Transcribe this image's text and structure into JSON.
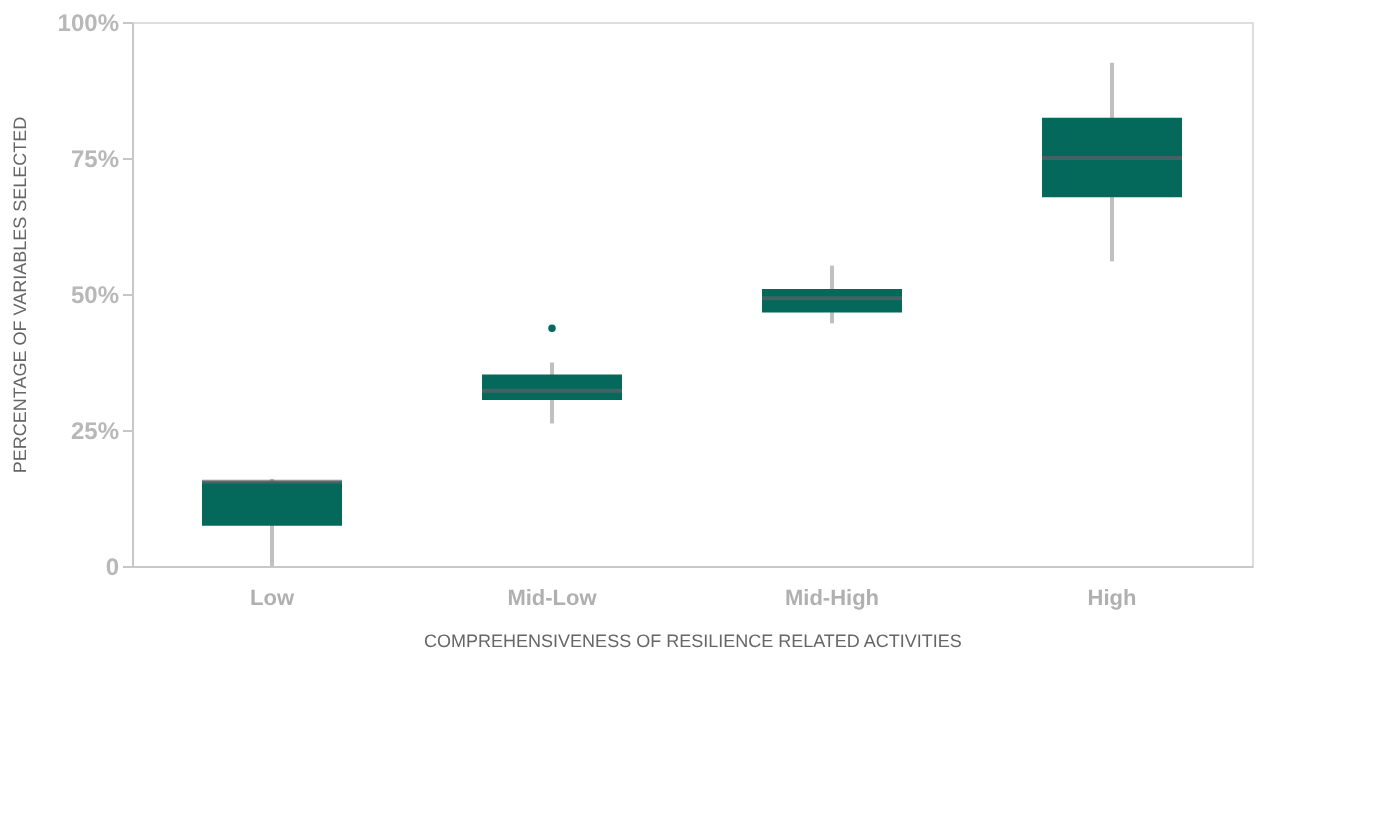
{
  "chart_data": {
    "type": "box",
    "xlabel": "COMPREHENSIVENESS OF RESILIENCE RELATED ACTIVITIES",
    "ylabel": "PERCENTAGE OF VARIABLES SELECTED",
    "categories": [
      "Low",
      "Mid-Low",
      "Mid-High",
      "High"
    ],
    "color": "#04695a",
    "boxes": [
      {
        "low": 0,
        "q1": 7.4,
        "median": 15.5,
        "q3": 15.6,
        "high": 16
      },
      {
        "low": 26.2,
        "q1": 30.5,
        "median": 32.2,
        "q3": 35.2,
        "high": 37.4,
        "outliers": [
          43.7
        ]
      },
      {
        "low": 44.6,
        "q1": 46.6,
        "median": 49.2,
        "q3": 50.9,
        "high": 55.2
      },
      {
        "low": 56,
        "q1": 67.8,
        "median": 75,
        "q3": 82.4,
        "high": 92.5
      }
    ],
    "ylim": [
      0,
      100
    ],
    "yticks": [
      {
        "value": 0,
        "label": "0"
      },
      {
        "value": 25,
        "label": "25%"
      },
      {
        "value": 50,
        "label": "50%"
      },
      {
        "value": 75,
        "label": "75%"
      },
      {
        "value": 100,
        "label": "100%"
      }
    ],
    "grid": false
  }
}
